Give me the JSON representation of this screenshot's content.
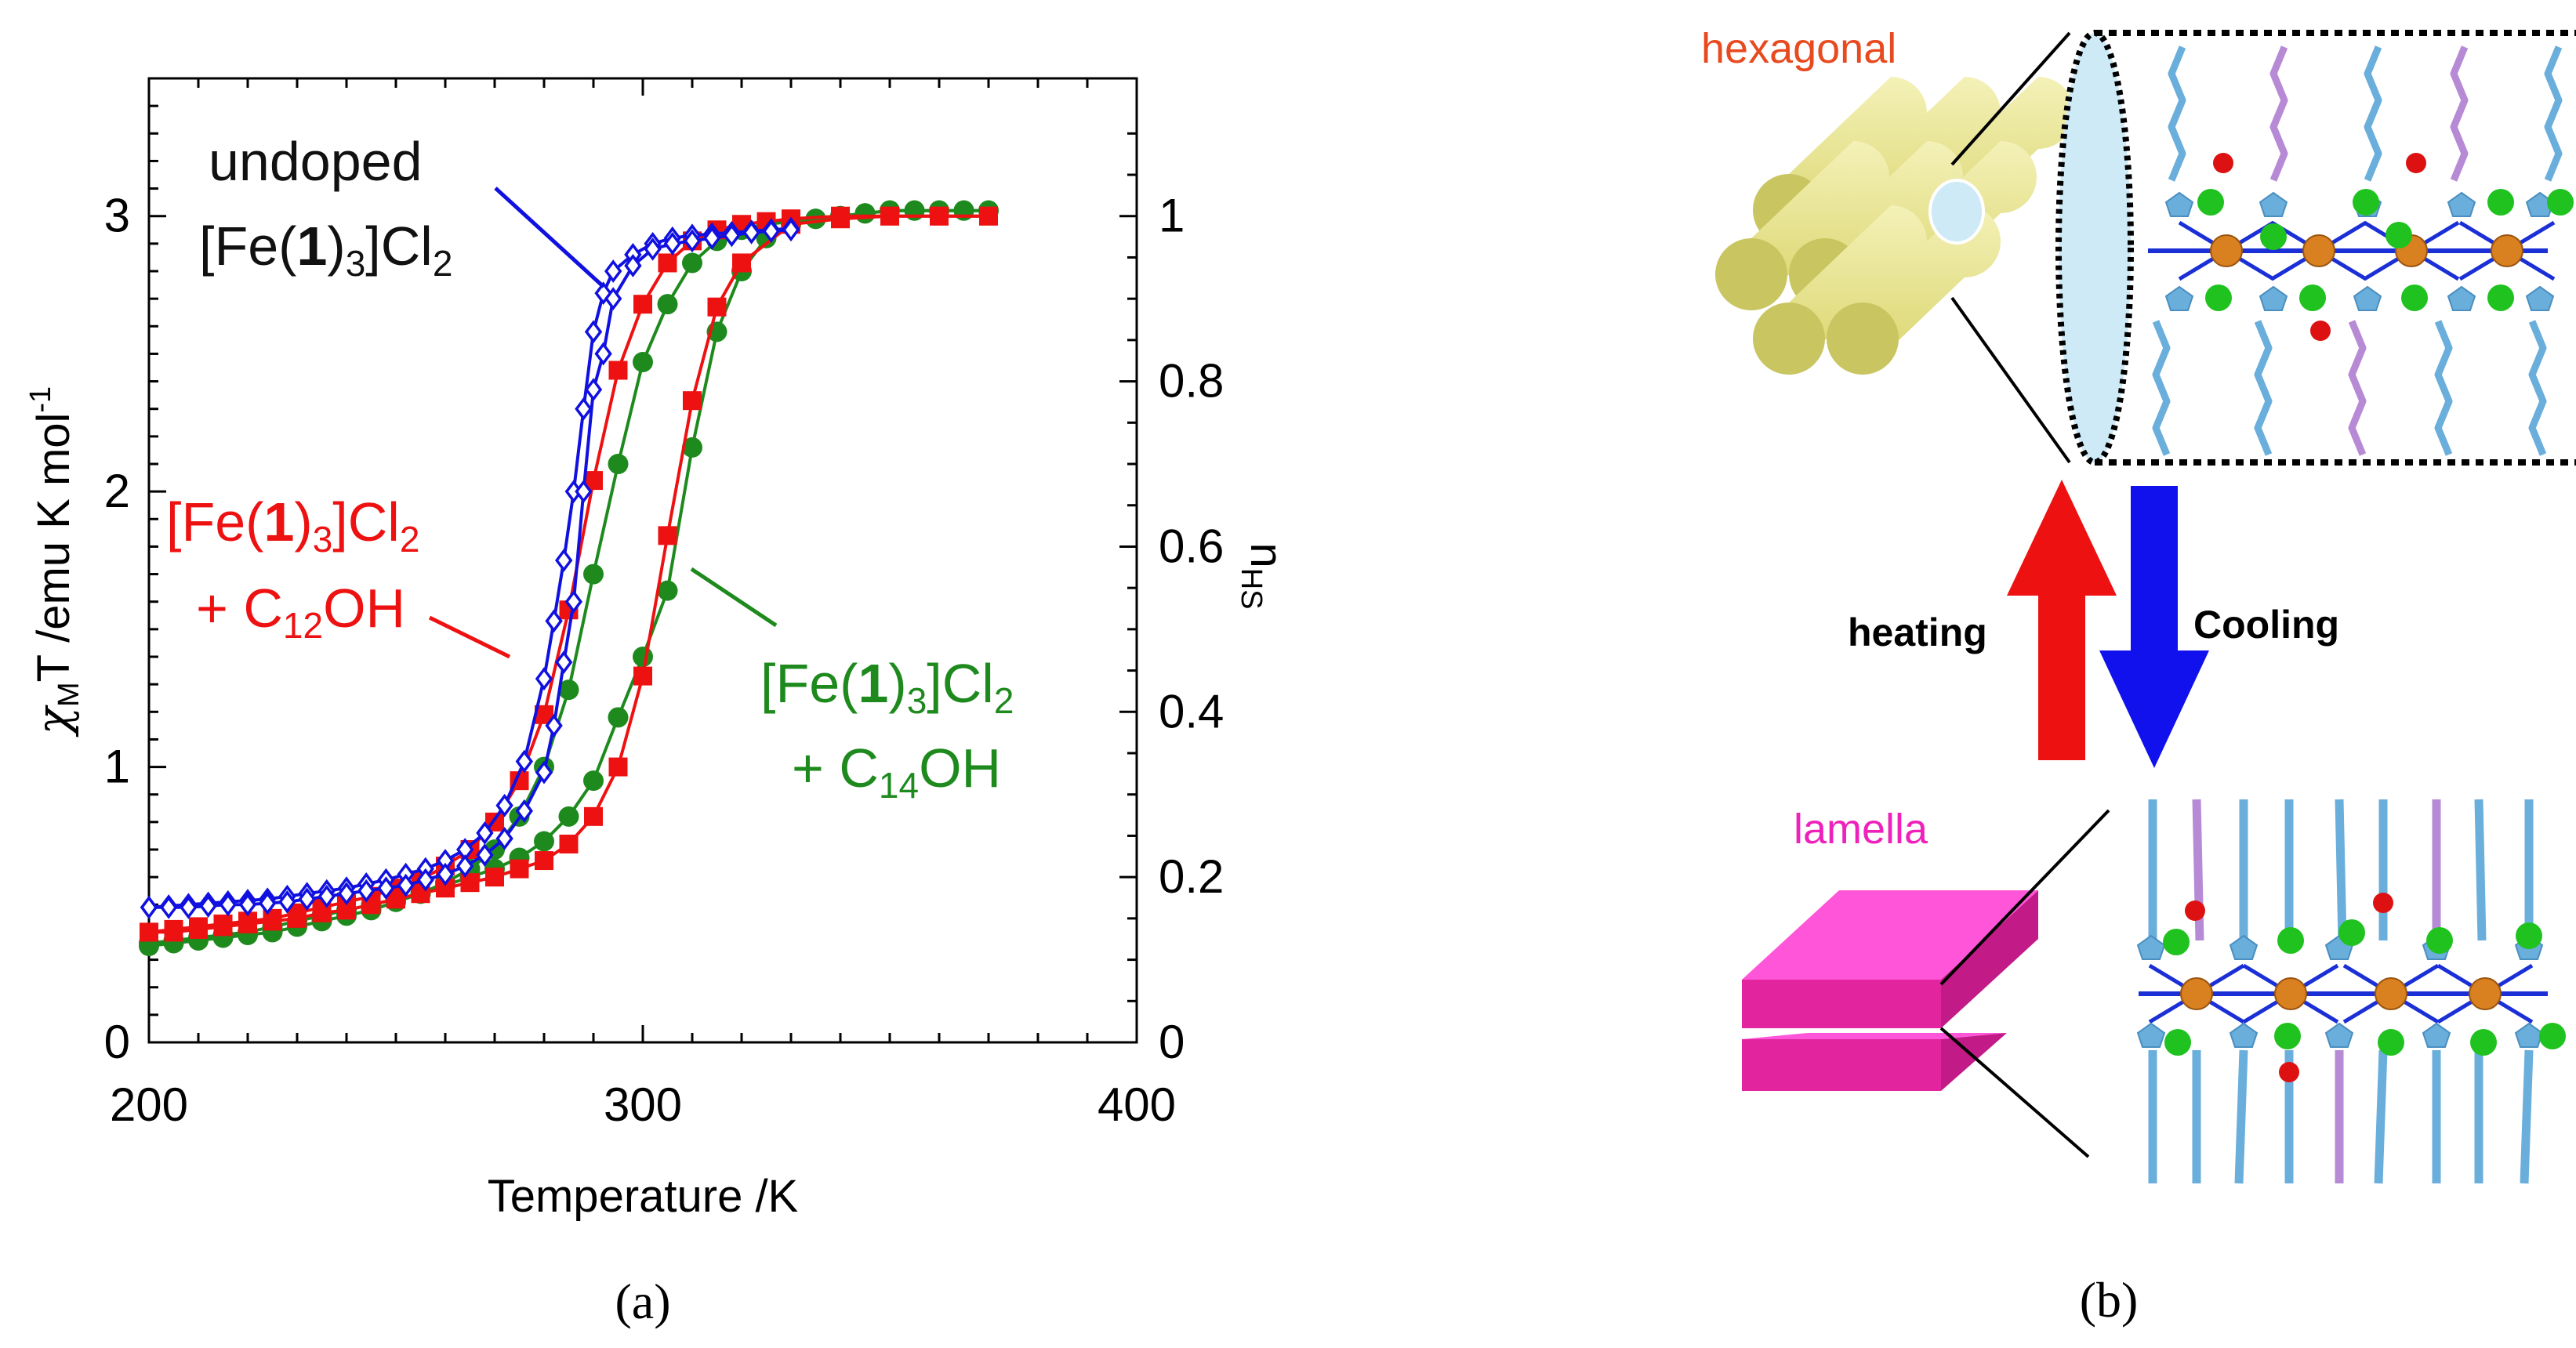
{
  "chart_data": {
    "type": "scatter",
    "xlabel": "Temperature  /K",
    "ylabel": {
      "symbol": "χ",
      "sub": "M",
      "text": "T /emu K mol",
      "sup": "-1"
    },
    "y2label": {
      "main": "n",
      "sub": "HS"
    },
    "xlim": [
      200,
      400
    ],
    "ylim": [
      0,
      3.5
    ],
    "y2lim": [
      0,
      1.1667
    ],
    "xticks": [
      200,
      300,
      400
    ],
    "yticks": [
      0,
      1,
      2,
      3
    ],
    "y2ticks": [
      0,
      0.2,
      0.4,
      0.6,
      0.8,
      1
    ],
    "y2ticklabels": [
      "0",
      "0.2",
      "0.4",
      "0.6",
      "0.8",
      "1"
    ],
    "colors": {
      "undoped": "#1010e0",
      "c12": "#ee1111",
      "c14": "#1e8a1e"
    },
    "series": [
      {
        "name": "undoped [Fe(1)3]Cl2",
        "marker": "diamond",
        "heating": {
          "x": [
            200,
            204,
            208,
            212,
            216,
            220,
            224,
            228,
            232,
            236,
            240,
            244,
            248,
            252,
            256,
            260,
            264,
            268,
            272,
            276,
            280,
            282,
            284,
            286,
            288,
            290,
            292,
            294,
            298,
            302,
            306,
            310,
            314,
            318,
            322,
            326,
            330
          ],
          "y": [
            0.49,
            0.495,
            0.5,
            0.505,
            0.51,
            0.515,
            0.52,
            0.53,
            0.54,
            0.55,
            0.56,
            0.575,
            0.59,
            0.61,
            0.63,
            0.66,
            0.7,
            0.76,
            0.86,
            1.02,
            1.32,
            1.53,
            1.75,
            2.0,
            2.3,
            2.58,
            2.72,
            2.8,
            2.86,
            2.9,
            2.92,
            2.93,
            2.935,
            2.94,
            2.945,
            2.95,
            2.955
          ]
        },
        "cooling": {
          "x": [
            330,
            326,
            322,
            318,
            314,
            310,
            306,
            302,
            298,
            294,
            292,
            290,
            288,
            286,
            284,
            282,
            280,
            276,
            272,
            268,
            264,
            260,
            256,
            252,
            248,
            244,
            240,
            236,
            232,
            228,
            224,
            220,
            216,
            212,
            208,
            204,
            200
          ],
          "y": [
            2.95,
            2.945,
            2.94,
            2.93,
            2.92,
            2.91,
            2.9,
            2.88,
            2.82,
            2.7,
            2.5,
            2.37,
            2.0,
            1.6,
            1.38,
            1.15,
            0.98,
            0.84,
            0.74,
            0.68,
            0.64,
            0.61,
            0.59,
            0.57,
            0.56,
            0.55,
            0.54,
            0.53,
            0.52,
            0.51,
            0.505,
            0.5,
            0.5,
            0.495,
            0.49,
            0.49,
            0.49
          ]
        }
      },
      {
        "name": "[Fe(1)3]Cl2 + C12OH",
        "marker": "square",
        "heating": {
          "x": [
            200,
            205,
            210,
            215,
            220,
            225,
            230,
            235,
            240,
            245,
            250,
            255,
            260,
            265,
            270,
            275,
            280,
            285,
            290,
            295,
            300,
            305,
            310,
            315,
            320,
            325,
            330,
            340,
            350,
            360,
            370
          ],
          "y": [
            0.4,
            0.41,
            0.42,
            0.43,
            0.44,
            0.45,
            0.47,
            0.49,
            0.51,
            0.53,
            0.56,
            0.59,
            0.64,
            0.7,
            0.8,
            0.95,
            1.19,
            1.57,
            2.04,
            2.44,
            2.68,
            2.83,
            2.91,
            2.95,
            2.97,
            2.98,
            2.99,
            3.0,
            3.0,
            3.0,
            3.0
          ]
        },
        "cooling": {
          "x": [
            370,
            360,
            350,
            340,
            330,
            320,
            315,
            310,
            305,
            300,
            295,
            290,
            285,
            280,
            275,
            270,
            265,
            260,
            255,
            250,
            245,
            240,
            235,
            230,
            225,
            220,
            215,
            210,
            205,
            200
          ],
          "y": [
            3.0,
            3.0,
            3.0,
            2.99,
            2.97,
            2.83,
            2.67,
            2.33,
            1.84,
            1.33,
            1.0,
            0.82,
            0.72,
            0.66,
            0.63,
            0.6,
            0.58,
            0.56,
            0.54,
            0.52,
            0.5,
            0.48,
            0.47,
            0.45,
            0.44,
            0.43,
            0.42,
            0.41,
            0.4,
            0.4
          ]
        }
      },
      {
        "name": "[Fe(1)3]Cl2 + C14OH",
        "marker": "circle",
        "heating": {
          "x": [
            200,
            205,
            210,
            215,
            220,
            225,
            230,
            235,
            240,
            245,
            250,
            255,
            260,
            265,
            270,
            275,
            280,
            285,
            290,
            295,
            300,
            305,
            310,
            315,
            320,
            325,
            330,
            335,
            340,
            345,
            350,
            355,
            360,
            365,
            370
          ],
          "y": [
            0.35,
            0.36,
            0.37,
            0.38,
            0.39,
            0.4,
            0.42,
            0.44,
            0.46,
            0.48,
            0.51,
            0.54,
            0.58,
            0.63,
            0.7,
            0.82,
            1.0,
            1.28,
            1.7,
            2.1,
            2.47,
            2.68,
            2.83,
            2.91,
            2.95,
            2.97,
            2.98,
            2.99,
            3.0,
            3.01,
            3.02,
            3.02,
            3.02,
            3.02,
            3.02
          ]
        },
        "cooling": {
          "x": [
            370,
            365,
            360,
            355,
            350,
            345,
            340,
            335,
            330,
            325,
            320,
            315,
            310,
            305,
            300,
            295,
            290,
            285,
            280,
            275,
            270,
            265,
            260,
            255,
            250,
            245,
            240,
            235,
            230,
            225,
            220,
            215,
            210,
            205,
            200
          ],
          "y": [
            3.02,
            3.02,
            3.02,
            3.02,
            3.02,
            3.01,
            3.0,
            2.99,
            2.97,
            2.92,
            2.8,
            2.58,
            2.16,
            1.64,
            1.4,
            1.18,
            0.95,
            0.82,
            0.73,
            0.67,
            0.63,
            0.6,
            0.57,
            0.54,
            0.52,
            0.5,
            0.48,
            0.46,
            0.44,
            0.42,
            0.4,
            0.39,
            0.38,
            0.37,
            0.36
          ]
        }
      }
    ]
  },
  "annotations": {
    "undoped_line1": "undoped",
    "undoped_line2": {
      "pre": "[Fe(",
      "bold": "1",
      "mid": ")",
      "sub": "3",
      "post": "]Cl",
      "sub2": "2"
    },
    "c12_line1": {
      "pre": "[Fe(",
      "bold": "1",
      "mid": ")",
      "sub": "3",
      "post": "]Cl",
      "sub2": "2"
    },
    "c12_line2": {
      "pre": "+ C",
      "sub": "12",
      "post": "OH"
    },
    "c14_line1": {
      "pre": "[Fe(",
      "bold": "1",
      "mid": ")",
      "sub": "3",
      "post": "]Cl",
      "sub2": "2"
    },
    "c14_line2": {
      "pre": "+ C",
      "sub": "14",
      "post": "OH"
    }
  },
  "panel_labels": {
    "a": "(a)",
    "b": "(b)"
  },
  "schematic": {
    "hexagonal_label": "hexagonal",
    "lamella_label": "lamella",
    "heating_label": "heating",
    "cooling_label": "Cooling",
    "colors": {
      "hexagonal": "#e84a1f",
      "lamella": "#ee22bb",
      "heat_arrow": "#ee1111",
      "cool_arrow": "#1111ee",
      "rod_yellow": "#e8e48a",
      "tube": "#cdeaf6",
      "chain_blue": "#6aaedc",
      "chain_purple": "#b78ad6",
      "iron": "#d98020",
      "chloride": "#1fc21f",
      "oxygen": "#dd1111",
      "slab": "#ee33c0"
    }
  }
}
